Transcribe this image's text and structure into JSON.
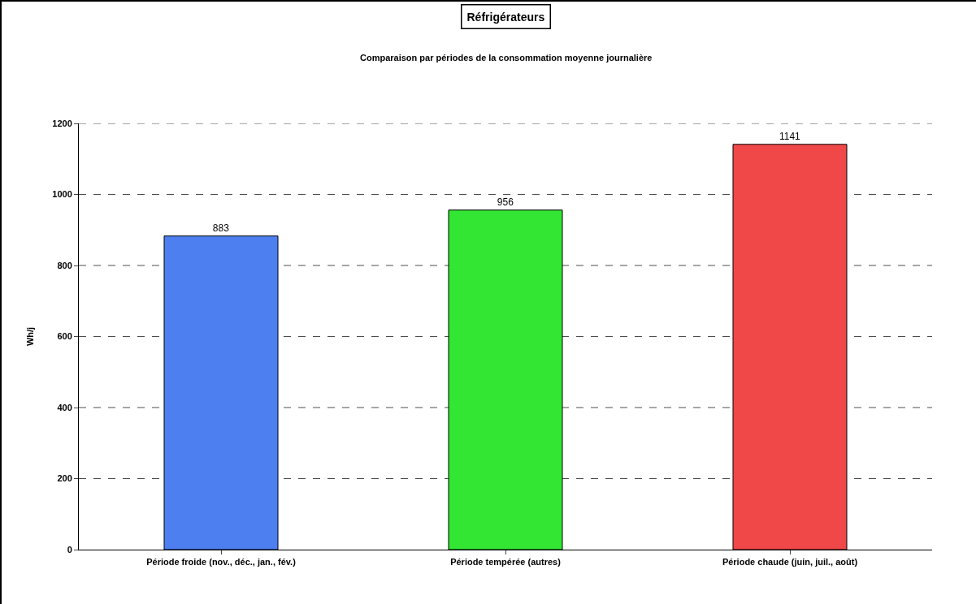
{
  "chart_data": {
    "type": "bar",
    "title": "Réfrigérateurs",
    "subtitle": "Comparaison par périodes de la consommation moyenne journalière",
    "ylabel": "Wh/j",
    "categories": [
      "Période froide (nov., déc., jan., fév.)",
      "Période tempérée (autres)",
      "Période chaude (juin, juil., août)"
    ],
    "values": [
      883,
      956,
      1141
    ],
    "colors": [
      "#4d7ff0",
      "#33e633",
      "#f04848"
    ],
    "ylim": [
      0,
      1200
    ],
    "yticks": [
      0,
      200,
      400,
      600,
      800,
      1000,
      1200
    ],
    "grid": "y",
    "data_labels": true
  }
}
